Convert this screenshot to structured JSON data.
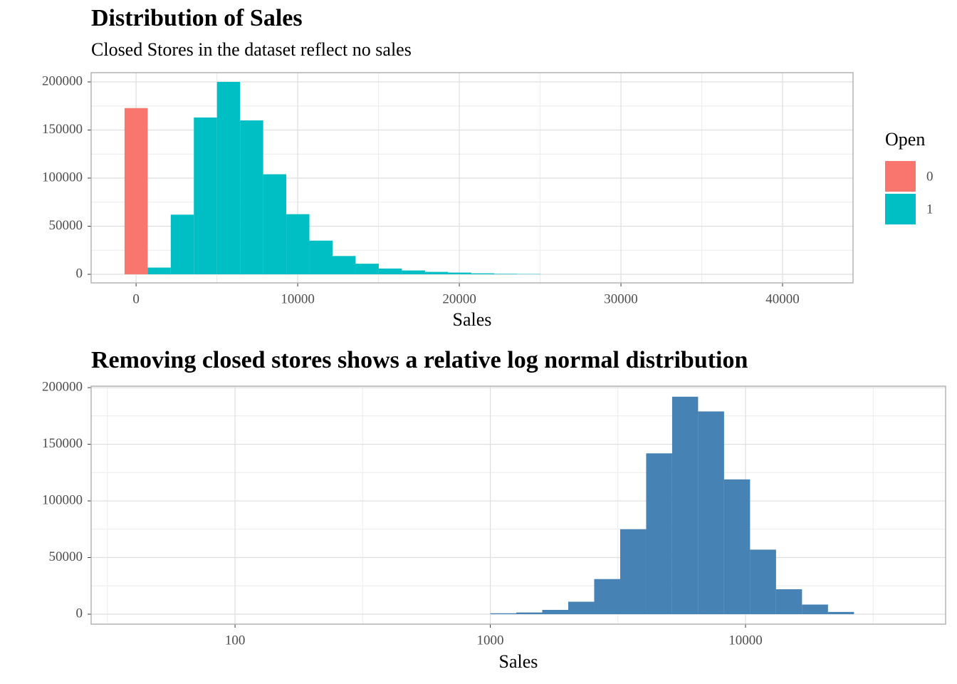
{
  "chart_data": [
    {
      "type": "histogram",
      "title": "Distribution of Sales",
      "subtitle": "Closed Stores in the dataset reflect no sales",
      "x_label": "Sales",
      "legend_title": "Open",
      "legend_position": "right",
      "grid": true,
      "stacked": true,
      "bins": [
        -715,
        715,
        2145,
        3575,
        5005,
        6435,
        7865,
        9295,
        10725,
        12155,
        13585,
        15015,
        16445,
        17875,
        19305,
        20735,
        22165,
        23595,
        25025
      ],
      "series": [
        {
          "name": "0",
          "color": "#f8766d",
          "values": [
            172800,
            0,
            0,
            0,
            0,
            0,
            0,
            0,
            0,
            0,
            0,
            0,
            0,
            0,
            0,
            0,
            0,
            0
          ]
        },
        {
          "name": "1",
          "color": "#00bfc4",
          "values": [
            0,
            7000,
            62000,
            163000,
            200000,
            160000,
            104000,
            62500,
            35000,
            19000,
            11000,
            6000,
            4000,
            2500,
            1800,
            1000,
            500,
            300
          ]
        }
      ],
      "xlim": [
        -2780,
        44360
      ],
      "xticks": [
        0,
        10000,
        20000,
        30000,
        40000
      ],
      "ylim": [
        -8900,
        209600
      ],
      "yticks": [
        0,
        50000,
        100000,
        150000,
        200000
      ]
    },
    {
      "type": "histogram",
      "title": "Removing closed stores shows a relative log normal distribution",
      "x_label": "Sales",
      "x_log": true,
      "grid": true,
      "color": "#4682b4",
      "bins": [
        1000,
        1264,
        1598,
        2020,
        2553,
        3228,
        4080,
        5157,
        6519,
        8241,
        10418,
        13170,
        16649,
        21047,
        26607
      ],
      "values": [
        800,
        1500,
        3800,
        11000,
        31000,
        75000,
        142000,
        192000,
        179000,
        119000,
        57000,
        22000,
        8500,
        2000
      ],
      "xlim": [
        27.3,
        60800
      ],
      "xticks": [
        100,
        1000,
        10000
      ],
      "ylim": [
        -8800,
        201300
      ],
      "yticks": [
        0,
        50000,
        100000,
        150000,
        200000
      ]
    }
  ]
}
